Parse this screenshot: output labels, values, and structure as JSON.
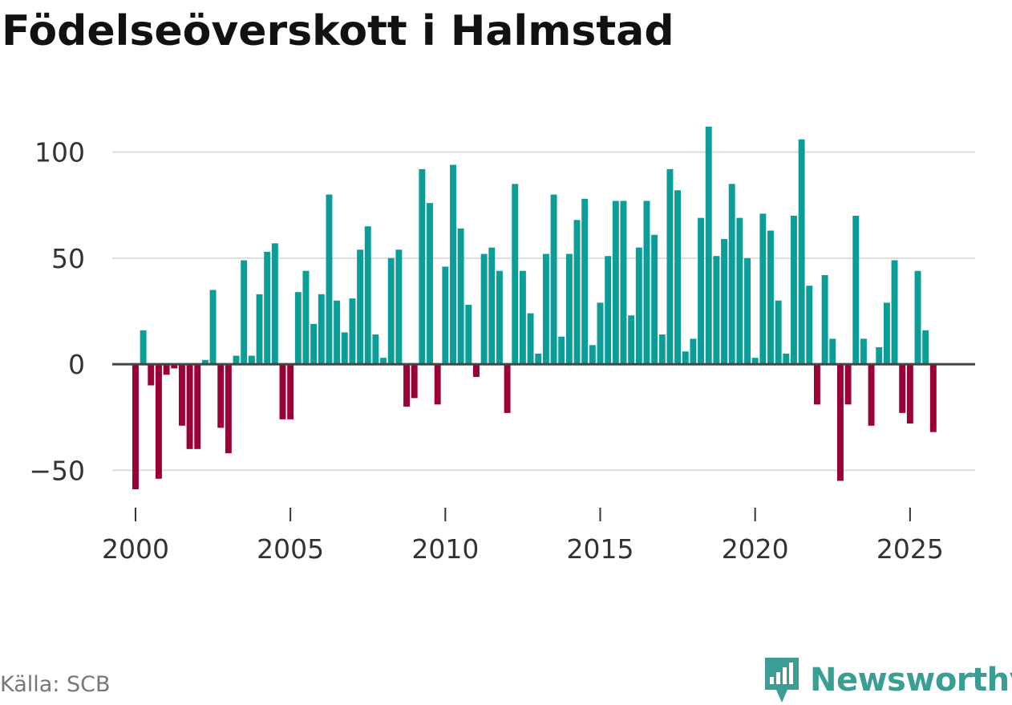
{
  "title": "Födelseöverskott i Halmstad",
  "source": "Källa: SCB",
  "brand": {
    "name": "Newsworthy",
    "icon": "newsworthy-logo-icon"
  },
  "colors": {
    "positive": "#0b9e98",
    "negative": "#9b0039",
    "grid": "#dddddd",
    "zero_line": "#444444",
    "brand": "#3a9e94"
  },
  "chart_data": {
    "type": "bar",
    "title": "Födelseöverskott i Halmstad",
    "xlabel": "",
    "ylabel": "",
    "ylim": [
      -62,
      115
    ],
    "xlim": [
      1999.25,
      2027.1
    ],
    "yticks": [
      -50,
      0,
      50,
      100
    ],
    "ytick_labels": [
      "−50",
      "0",
      "50",
      "100"
    ],
    "xticks": [
      2000,
      2005,
      2010,
      2015,
      2020,
      2025
    ],
    "xtick_labels": [
      "2000",
      "2005",
      "2010",
      "2015",
      "2020",
      "2025"
    ],
    "frequency": "quarterly",
    "start_year": 2000,
    "values": [
      -59,
      16,
      -10,
      -54,
      -5,
      -2,
      -29,
      -40,
      -40,
      2,
      35,
      -30,
      -42,
      4,
      49,
      4,
      33,
      53,
      57,
      -26,
      -26,
      34,
      44,
      19,
      33,
      80,
      30,
      15,
      31,
      54,
      65,
      14,
      3,
      50,
      54,
      -20,
      -16,
      92,
      76,
      -19,
      46,
      94,
      64,
      28,
      -6,
      52,
      55,
      44,
      -23,
      85,
      44,
      24,
      5,
      52,
      80,
      13,
      52,
      68,
      78,
      9,
      29,
      51,
      77,
      77,
      23,
      55,
      77,
      61,
      14,
      92,
      82,
      6,
      12,
      69,
      112,
      51,
      59,
      85,
      69,
      50,
      3,
      71,
      63,
      30,
      5,
      70,
      106,
      37,
      -19,
      42,
      12,
      -55,
      -19,
      70,
      12,
      -29,
      8,
      29,
      49,
      -23,
      -28,
      44,
      16,
      -32
    ]
  }
}
